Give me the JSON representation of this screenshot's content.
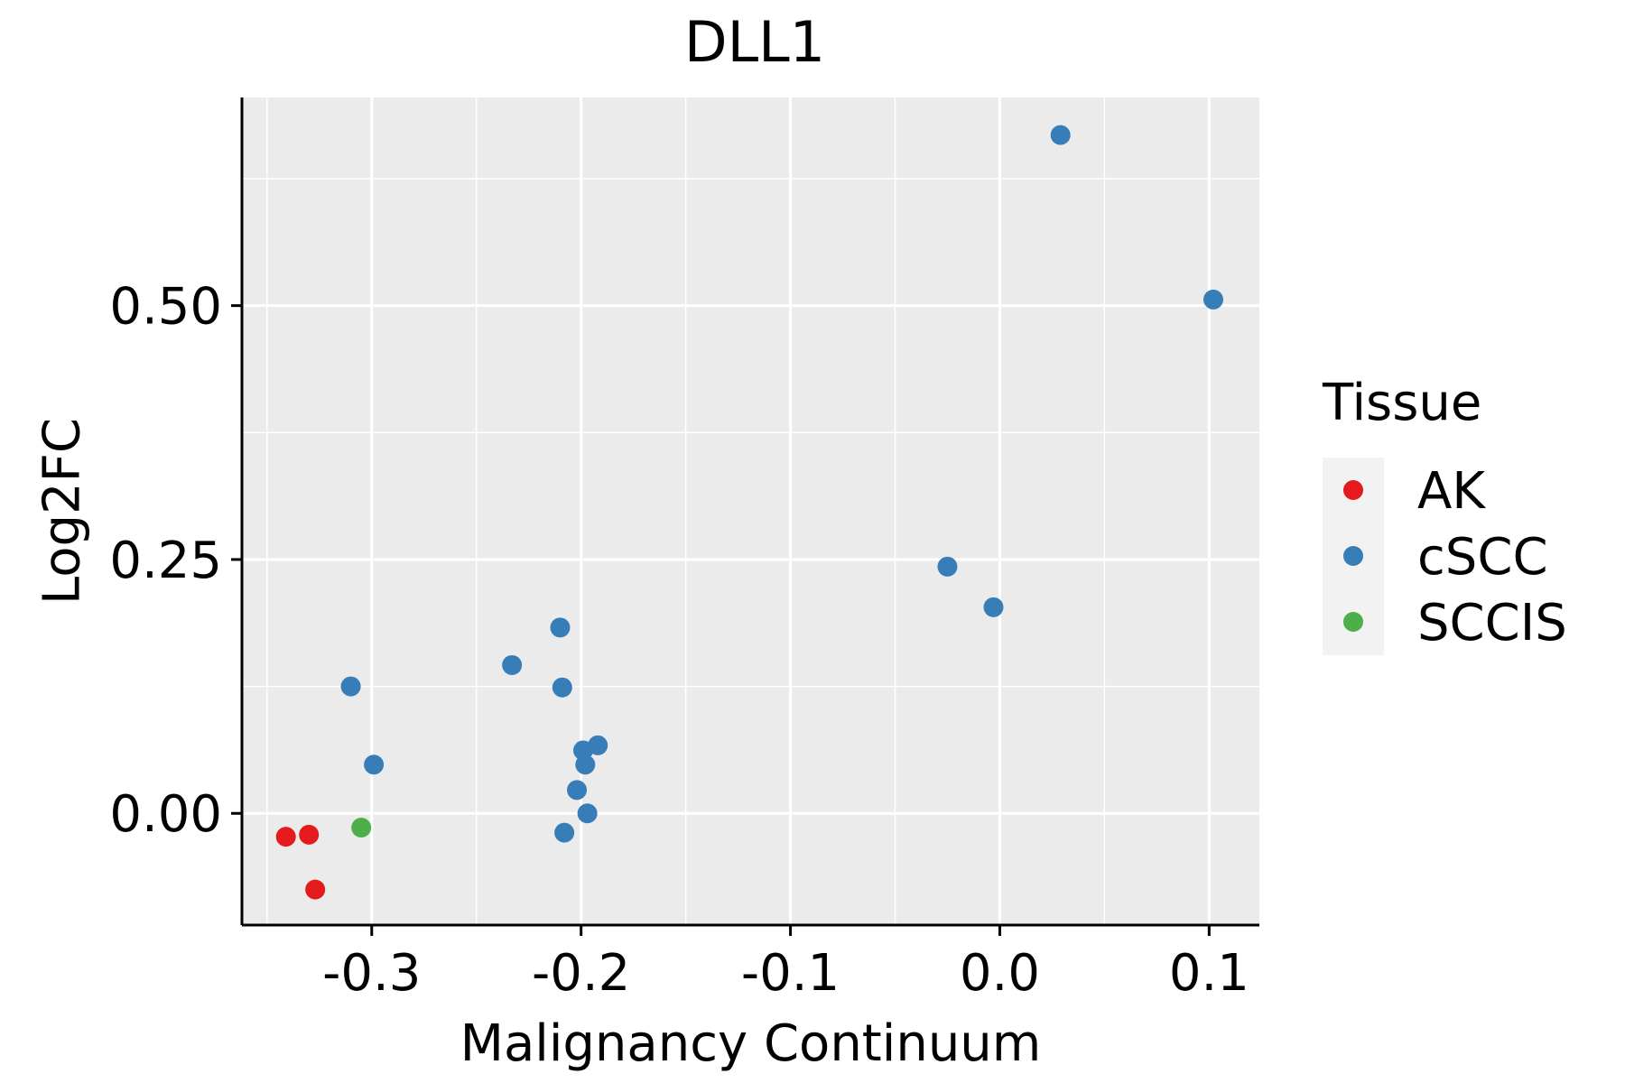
{
  "chart_data": {
    "type": "scatter",
    "title": "DLL1",
    "xlabel": "Malignancy Continuum",
    "ylabel": "Log2FC",
    "xlim": [
      -0.362,
      0.124
    ],
    "ylim": [
      -0.11,
      0.705
    ],
    "x_ticks": [
      -0.3,
      -0.2,
      -0.1,
      0.0,
      0.1
    ],
    "x_tick_labels": [
      "-0.3",
      "-0.2",
      "-0.1",
      "0.0",
      "0.1"
    ],
    "y_ticks": [
      0.0,
      0.25,
      0.5
    ],
    "y_tick_labels": [
      "0.00",
      "0.25",
      "0.50"
    ],
    "x_minor_gridlines": [
      -0.35,
      -0.25,
      -0.15,
      -0.05,
      0.05
    ],
    "y_minor_gridlines": [
      -0.125,
      0.125,
      0.375,
      0.625
    ],
    "grid": true,
    "panel_background": "#EBEBEB",
    "legend": {
      "title": "Tissue",
      "placement": "right",
      "entries": [
        {
          "label": "AK",
          "color": "#E41A1C"
        },
        {
          "label": "cSCC",
          "color": "#377EB8"
        },
        {
          "label": "SCCIS",
          "color": "#4DAF4A"
        }
      ]
    },
    "series": [
      {
        "name": "AK",
        "color": "#E41A1C",
        "points": [
          {
            "x": -0.341,
            "y": -0.023
          },
          {
            "x": -0.33,
            "y": -0.021
          },
          {
            "x": -0.327,
            "y": -0.075
          }
        ]
      },
      {
        "name": "cSCC",
        "color": "#377EB8",
        "points": [
          {
            "x": 0.029,
            "y": 0.668
          },
          {
            "x": 0.102,
            "y": 0.506
          },
          {
            "x": -0.025,
            "y": 0.243
          },
          {
            "x": -0.003,
            "y": 0.203
          },
          {
            "x": -0.21,
            "y": 0.183
          },
          {
            "x": -0.233,
            "y": 0.146
          },
          {
            "x": -0.209,
            "y": 0.124
          },
          {
            "x": -0.31,
            "y": 0.125
          },
          {
            "x": -0.299,
            "y": 0.048
          },
          {
            "x": -0.199,
            "y": 0.062
          },
          {
            "x": -0.192,
            "y": 0.067
          },
          {
            "x": -0.198,
            "y": 0.048
          },
          {
            "x": -0.202,
            "y": 0.023
          },
          {
            "x": -0.197,
            "y": 0.0
          },
          {
            "x": -0.208,
            "y": -0.019
          }
        ]
      },
      {
        "name": "SCCIS",
        "color": "#4DAF4A",
        "points": [
          {
            "x": -0.305,
            "y": -0.014
          }
        ]
      }
    ]
  }
}
